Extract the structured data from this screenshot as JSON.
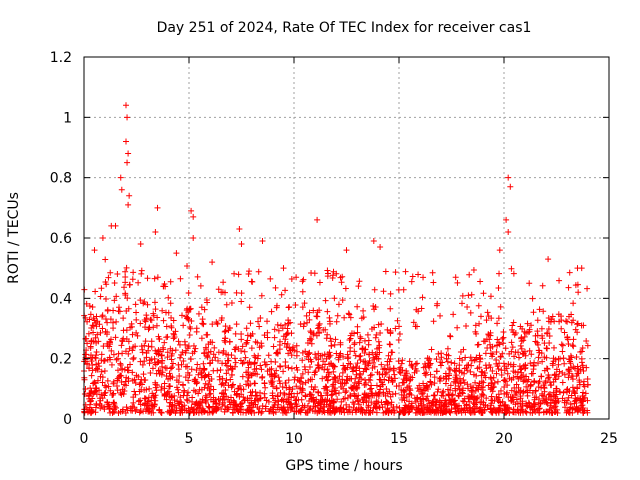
{
  "chart_data": {
    "type": "scatter",
    "title": "Day 251 of 2024, Rate Of TEC Index for receiver cas1",
    "xlabel": "GPS time / hours",
    "ylabel": "ROTI / TECUs",
    "xlim": [
      0,
      25
    ],
    "ylim": [
      0,
      1.2
    ],
    "xticks": [
      0,
      5,
      10,
      15,
      20,
      25
    ],
    "yticks": [
      0,
      0.2,
      0.4,
      0.6,
      0.8,
      1,
      1.2
    ],
    "xtick_labels": [
      "0",
      "5",
      "10",
      "15",
      "20",
      "25"
    ],
    "ytick_labels": [
      "0",
      "0.2",
      "0.4",
      "0.6",
      "0.8",
      "1",
      "1.2"
    ],
    "grid": true,
    "marker": "+",
    "color": "#ff0000",
    "series": [
      {
        "name": "cas1",
        "x_range": [
          0,
          24
        ],
        "typical_values": [
          0.02,
          0.3
        ],
        "peaks": [
          {
            "x": 2.0,
            "y": 1.04
          },
          {
            "x": 2.05,
            "y": 1.0
          },
          {
            "x": 2.0,
            "y": 0.92
          },
          {
            "x": 2.1,
            "y": 0.88
          },
          {
            "x": 2.05,
            "y": 0.85
          },
          {
            "x": 1.75,
            "y": 0.8
          },
          {
            "x": 1.8,
            "y": 0.76
          },
          {
            "x": 2.15,
            "y": 0.74
          },
          {
            "x": 2.1,
            "y": 0.71
          },
          {
            "x": 1.3,
            "y": 0.64
          },
          {
            "x": 1.5,
            "y": 0.64
          },
          {
            "x": 3.5,
            "y": 0.7
          },
          {
            "x": 3.4,
            "y": 0.62
          },
          {
            "x": 5.1,
            "y": 0.69
          },
          {
            "x": 5.2,
            "y": 0.67
          },
          {
            "x": 5.2,
            "y": 0.6
          },
          {
            "x": 7.4,
            "y": 0.63
          },
          {
            "x": 8.5,
            "y": 0.59
          },
          {
            "x": 11.1,
            "y": 0.66
          },
          {
            "x": 12.5,
            "y": 0.56
          },
          {
            "x": 13.8,
            "y": 0.59
          },
          {
            "x": 14.1,
            "y": 0.57
          },
          {
            "x": 20.2,
            "y": 0.8
          },
          {
            "x": 20.3,
            "y": 0.77
          },
          {
            "x": 20.1,
            "y": 0.66
          },
          {
            "x": 20.2,
            "y": 0.62
          },
          {
            "x": 19.8,
            "y": 0.56
          },
          {
            "x": 22.1,
            "y": 0.53
          },
          {
            "x": 23.5,
            "y": 0.5
          },
          {
            "x": 23.7,
            "y": 0.5
          },
          {
            "x": 0.9,
            "y": 0.6
          },
          {
            "x": 0.5,
            "y": 0.56
          },
          {
            "x": 2.7,
            "y": 0.58
          },
          {
            "x": 4.4,
            "y": 0.55
          },
          {
            "x": 6.1,
            "y": 0.52
          },
          {
            "x": 7.5,
            "y": 0.58
          },
          {
            "x": 9.5,
            "y": 0.5
          },
          {
            "x": 10.1,
            "y": 0.47
          },
          {
            "x": 17.7,
            "y": 0.47
          },
          {
            "x": 21.2,
            "y": 0.45
          }
        ]
      }
    ]
  }
}
